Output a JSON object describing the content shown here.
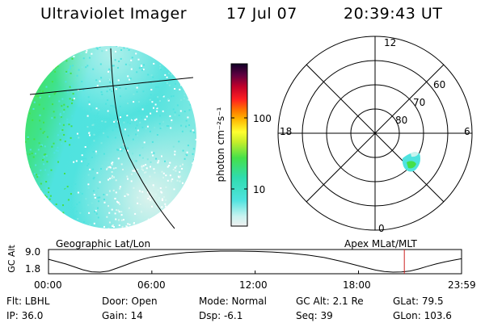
{
  "header": {
    "title": "Ultraviolet Imager",
    "date": "17 Jul 07",
    "time": "20:39:43 UT"
  },
  "image_panel": {
    "caption": "Geographic Lat/Lon",
    "colors": {
      "cyan": "#4fe3df",
      "green": "#45e04a",
      "pale": "#d7f5ef"
    }
  },
  "colorbar": {
    "label": "photon cm⁻²s⁻¹",
    "ticks": [
      "100",
      "10"
    ]
  },
  "polar_panel": {
    "caption": "Apex MLat/MLT",
    "mlt_labels": {
      "top": "12",
      "left": "18",
      "right": "6",
      "bottom": "0"
    },
    "lat_labels": [
      "60",
      "70",
      "80"
    ]
  },
  "chart_data": {
    "type": "line",
    "ylabel": "GC Alt",
    "yticks": [
      "9.0",
      "1.8"
    ],
    "ylim": [
      1.8,
      9.0
    ],
    "xticks": [
      "00:00",
      "06:00",
      "12:00",
      "18:00",
      "23:59"
    ],
    "xlim": [
      0,
      23.983
    ],
    "x": [
      0,
      0.5,
      1,
      1.5,
      2,
      2.5,
      3,
      3.5,
      4,
      4.5,
      5,
      5.5,
      6,
      7,
      8,
      9,
      10,
      11,
      12,
      13,
      14,
      15,
      16,
      17,
      18,
      18.5,
      19,
      19.5,
      20,
      20.5,
      21,
      21.5,
      22,
      22.5,
      23,
      23.5,
      23.983
    ],
    "y": [
      6.2,
      5.4,
      4.6,
      3.6,
      2.6,
      1.9,
      1.8,
      2.2,
      3.2,
      4.3,
      5.4,
      6.3,
      7.0,
      7.9,
      8.5,
      8.8,
      9.0,
      9.0,
      8.9,
      8.7,
      8.3,
      7.7,
      6.8,
      5.5,
      4.0,
      3.2,
      2.5,
      2.0,
      1.8,
      1.85,
      2.2,
      2.9,
      3.8,
      4.6,
      5.3,
      5.9,
      6.4
    ],
    "marker_x": 20.66,
    "marker_color": "#cc2222"
  },
  "info": {
    "flt": "Flt: LBHL",
    "ip": "IP: 36.0",
    "door": "Door: Open",
    "gain": "Gain: 14",
    "mode": "Mode: Normal",
    "dsp": "Dsp:   -6.1",
    "gcalt": "GC Alt: 2.1 Re",
    "seq": "Seq: 39",
    "glat": "GLat:  79.5",
    "glon": "GLon: 103.6"
  }
}
